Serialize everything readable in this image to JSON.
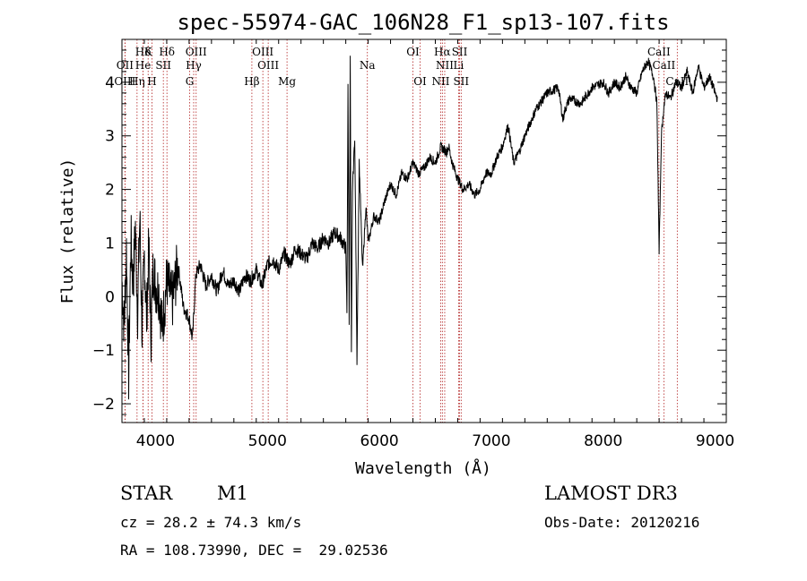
{
  "chart_data": {
    "type": "line",
    "title": "spec-55974-GAC_106N28_F1_sp13-107.fits",
    "xlabel": "Wavelength (Å)",
    "ylabel": "Flux (relative)",
    "xlim": [
      3700,
      9100
    ],
    "ylim": [
      -2.35,
      4.8
    ],
    "xticks": [
      4000,
      5000,
      6000,
      7000,
      8000,
      9000
    ],
    "yticks": [
      -2,
      -1,
      0,
      1,
      2,
      3,
      4
    ],
    "grid": false,
    "series": [
      {
        "x": [
          3700,
          3720,
          3740,
          3760,
          3780,
          3800,
          3820,
          3840,
          3860,
          3880,
          3900,
          3920,
          3940,
          3960,
          3980,
          4000,
          4030,
          4060,
          4100,
          4150,
          4200,
          4250,
          4300,
          4330,
          4360,
          4400,
          4450,
          4500,
          4550,
          4600,
          4650,
          4700,
          4750,
          4800,
          4850,
          4900,
          4950,
          5000,
          5050,
          5100,
          5150,
          5200,
          5250,
          5300,
          5350,
          5400,
          5450,
          5500,
          5550,
          5600,
          5650,
          5700,
          5710,
          5720,
          5730,
          5740,
          5750,
          5760,
          5780,
          5800,
          5820,
          5850,
          5880,
          5900,
          5950,
          6000,
          6050,
          6100,
          6150,
          6200,
          6250,
          6300,
          6350,
          6400,
          6450,
          6500,
          6550,
          6600,
          6620,
          6650,
          6700,
          6750,
          6800,
          6850,
          6900,
          6950,
          7000,
          7050,
          7100,
          7150,
          7200,
          7250,
          7300,
          7400,
          7500,
          7600,
          7640,
          7660,
          7700,
          7800,
          7900,
          8000,
          8050,
          8100,
          8150,
          8200,
          8250,
          8300,
          8350,
          8400,
          8450,
          8480,
          8500,
          8520,
          8540,
          8560,
          8600,
          8650,
          8700,
          8750,
          8800,
          8850,
          8900,
          8950,
          9000,
          9020
        ],
        "y": [
          0.3,
          -0.6,
          0.9,
          -1.5,
          1.1,
          0.2,
          1.3,
          -0.3,
          1.5,
          -0.7,
          0.8,
          -0.4,
          0.9,
          -0.7,
          0.6,
          0.2,
          0.1,
          -0.6,
          0.3,
          -0.1,
          0.6,
          -0.2,
          -0.4,
          -0.8,
          0.4,
          0.6,
          0.2,
          0.4,
          0.1,
          0.5,
          0.2,
          0.3,
          0.1,
          0.4,
          0.3,
          0.5,
          0.2,
          0.6,
          0.7,
          0.5,
          0.8,
          0.6,
          0.9,
          0.8,
          0.7,
          1.0,
          0.9,
          1.1,
          1.0,
          1.2,
          1.1,
          0.9,
          -0.3,
          3.9,
          -0.5,
          4.5,
          -1.1,
          2.0,
          3.0,
          -1.2,
          2.5,
          0.5,
          1.7,
          1.0,
          1.5,
          1.4,
          1.8,
          2.1,
          1.9,
          2.3,
          2.2,
          2.5,
          2.3,
          2.4,
          2.6,
          2.5,
          2.8,
          2.7,
          2.8,
          2.5,
          2.2,
          2.0,
          2.1,
          1.9,
          2.0,
          2.3,
          2.3,
          2.6,
          2.8,
          3.2,
          2.5,
          2.7,
          3.0,
          3.5,
          3.8,
          3.9,
          3.3,
          3.5,
          3.7,
          3.6,
          3.9,
          4.0,
          3.8,
          4.0,
          3.9,
          4.1,
          3.9,
          3.8,
          4.2,
          4.4,
          4.1,
          3.6,
          0.8,
          3.0,
          3.5,
          3.8,
          3.7,
          4.0,
          3.9,
          4.2,
          3.8,
          4.3,
          3.9,
          4.1,
          3.8,
          3.7
        ]
      }
    ],
    "spectral_lines": [
      {
        "label": "Hδ",
        "x": 3889
      },
      {
        "label": "K",
        "x": 3934
      },
      {
        "label": "Hδ",
        "x": 4102
      },
      {
        "label": "OIII",
        "x": 4363
      },
      {
        "label": "OIII",
        "x": 4959
      },
      {
        "label": "OI",
        "x": 6300
      },
      {
        "label": "Hα",
        "x": 6563
      },
      {
        "label": "SII",
        "x": 6717
      },
      {
        "label": "OII",
        "x": 3727
      },
      {
        "label": "He",
        "x": 3889
      },
      {
        "label": "SII",
        "x": 4070
      },
      {
        "label": "Hγ",
        "x": 4341
      },
      {
        "label": "OIII",
        "x": 5007
      },
      {
        "label": "Na",
        "x": 5893
      },
      {
        "label": "NII",
        "x": 6584
      },
      {
        "label": "Li",
        "x": 6708
      },
      {
        "label": "OIII",
        "x": 3727
      },
      {
        "label": "Hη",
        "x": 3835
      },
      {
        "label": "H",
        "x": 3968
      },
      {
        "label": "G",
        "x": 4305
      },
      {
        "label": "Hβ",
        "x": 4861
      },
      {
        "label": "Mg",
        "x": 5175
      },
      {
        "label": "OI",
        "x": 6364
      },
      {
        "label": "NII",
        "x": 6548
      },
      {
        "label": "SII",
        "x": 6731
      },
      {
        "label": "CaII",
        "x": 8498
      },
      {
        "label": "CaII",
        "x": 8542
      },
      {
        "label": "CaII",
        "x": 8662
      }
    ]
  },
  "info": {
    "object_class": "STAR",
    "subclass": "M1",
    "survey": "LAMOST DR3",
    "cz": "cz = 28.2 ± 74.3 km/s",
    "obs_date": "Obs-Date: 20120216",
    "coords": "RA = 108.73990, DEC =  29.02536"
  },
  "colors": {
    "spectrum": "#000000",
    "line_markers": "#b22222",
    "axes": "#000000"
  }
}
